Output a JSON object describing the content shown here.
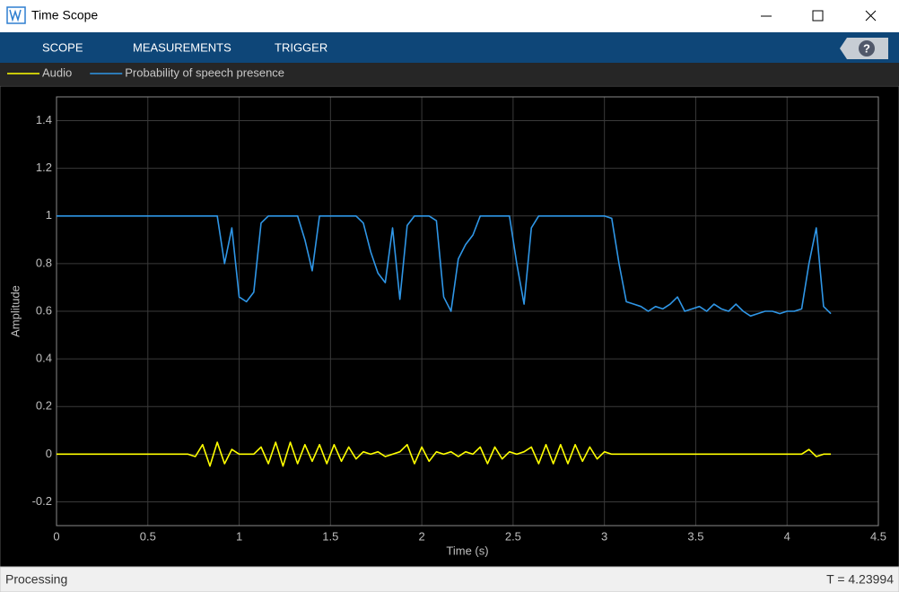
{
  "window": {
    "title": "Time Scope"
  },
  "toolbar": {
    "tabs": [
      "SCOPE",
      "MEASUREMENTS",
      "TRIGGER"
    ],
    "help": "?"
  },
  "chart_data": {
    "type": "line",
    "xlabel": "Time (s)",
    "ylabel": "Amplitude",
    "grid": true,
    "xlim": [
      0,
      4.5
    ],
    "ylim": [
      -0.3,
      1.5
    ],
    "xticks": [
      0,
      0.5,
      1,
      1.5,
      2,
      2.5,
      3,
      3.5,
      4,
      4.5
    ],
    "yticks": [
      -0.2,
      0,
      0.2,
      0.4,
      0.6,
      0.8,
      1,
      1.2,
      1.4
    ],
    "x": [
      0,
      0.04,
      0.08,
      0.12,
      0.16,
      0.2,
      0.24,
      0.28,
      0.32,
      0.36,
      0.4,
      0.44,
      0.48,
      0.52,
      0.56,
      0.6,
      0.64,
      0.68,
      0.72,
      0.76,
      0.8,
      0.84,
      0.88,
      0.92,
      0.96,
      1,
      1.04,
      1.08,
      1.12,
      1.16,
      1.2,
      1.24,
      1.28,
      1.32,
      1.36,
      1.4,
      1.44,
      1.48,
      1.52,
      1.56,
      1.6,
      1.64,
      1.68,
      1.72,
      1.76,
      1.8,
      1.84,
      1.88,
      1.92,
      1.96,
      2,
      2.04,
      2.08,
      2.12,
      2.16,
      2.2,
      2.24,
      2.28,
      2.32,
      2.36,
      2.4,
      2.44,
      2.48,
      2.52,
      2.56,
      2.6,
      2.64,
      2.68,
      2.72,
      2.76,
      2.8,
      2.84,
      2.88,
      2.92,
      2.96,
      3,
      3.04,
      3.08,
      3.12,
      3.16,
      3.2,
      3.24,
      3.28,
      3.32,
      3.36,
      3.4,
      3.44,
      3.48,
      3.52,
      3.56,
      3.6,
      3.64,
      3.68,
      3.72,
      3.76,
      3.8,
      3.84,
      3.88,
      3.92,
      3.96,
      4,
      4.04,
      4.08,
      4.12,
      4.16,
      4.2,
      4.24
    ],
    "series": [
      {
        "name": "Audio",
        "color": "#ffff00",
        "values": [
          0,
          0,
          0,
          0,
          0,
          0,
          0,
          0,
          0,
          0,
          0,
          0,
          0,
          0,
          0,
          0,
          0,
          0,
          0,
          -0.01,
          0.04,
          -0.05,
          0.05,
          -0.04,
          0.02,
          0,
          0,
          0,
          0.03,
          -0.04,
          0.05,
          -0.05,
          0.05,
          -0.04,
          0.04,
          -0.03,
          0.04,
          -0.04,
          0.04,
          -0.03,
          0.03,
          -0.02,
          0.01,
          0,
          0.01,
          -0.01,
          0,
          0.01,
          0.04,
          -0.04,
          0.03,
          -0.03,
          0.01,
          0,
          0.01,
          -0.01,
          0.01,
          0,
          0.03,
          -0.04,
          0.03,
          -0.02,
          0.01,
          0,
          0.01,
          0.03,
          -0.04,
          0.04,
          -0.04,
          0.04,
          -0.04,
          0.04,
          -0.03,
          0.03,
          -0.02,
          0.01,
          0,
          0,
          0,
          0,
          0,
          0,
          0,
          0,
          0,
          0,
          0,
          0,
          0,
          0,
          0,
          0,
          0,
          0,
          0,
          0,
          0,
          0,
          0,
          0,
          0,
          0,
          0,
          0.02,
          -0.01,
          0,
          0
        ]
      },
      {
        "name": "Probability of speech presence",
        "color": "#2f96e6",
        "values": [
          1,
          1,
          1,
          1,
          1,
          1,
          1,
          1,
          1,
          1,
          1,
          1,
          1,
          1,
          1,
          1,
          1,
          1,
          1,
          1,
          1,
          1,
          1,
          0.8,
          0.95,
          0.66,
          0.64,
          0.68,
          0.97,
          1,
          1,
          1,
          1,
          1,
          0.9,
          0.77,
          1,
          1,
          1,
          1,
          1,
          1,
          0.97,
          0.85,
          0.76,
          0.72,
          0.95,
          0.65,
          0.96,
          1,
          1,
          1,
          0.98,
          0.66,
          0.6,
          0.82,
          0.88,
          0.92,
          1,
          1,
          1,
          1,
          1,
          0.8,
          0.63,
          0.95,
          1,
          1,
          1,
          1,
          1,
          1,
          1,
          1,
          1,
          1,
          0.99,
          0.8,
          0.64,
          0.63,
          0.62,
          0.6,
          0.62,
          0.61,
          0.63,
          0.66,
          0.6,
          0.61,
          0.62,
          0.6,
          0.63,
          0.61,
          0.6,
          0.63,
          0.6,
          0.58,
          0.59,
          0.6,
          0.6,
          0.59,
          0.6,
          0.6,
          0.61,
          0.8,
          0.95,
          0.62,
          0.59
        ]
      }
    ]
  },
  "status": {
    "left": "Processing",
    "right": "T = 4.23994"
  }
}
